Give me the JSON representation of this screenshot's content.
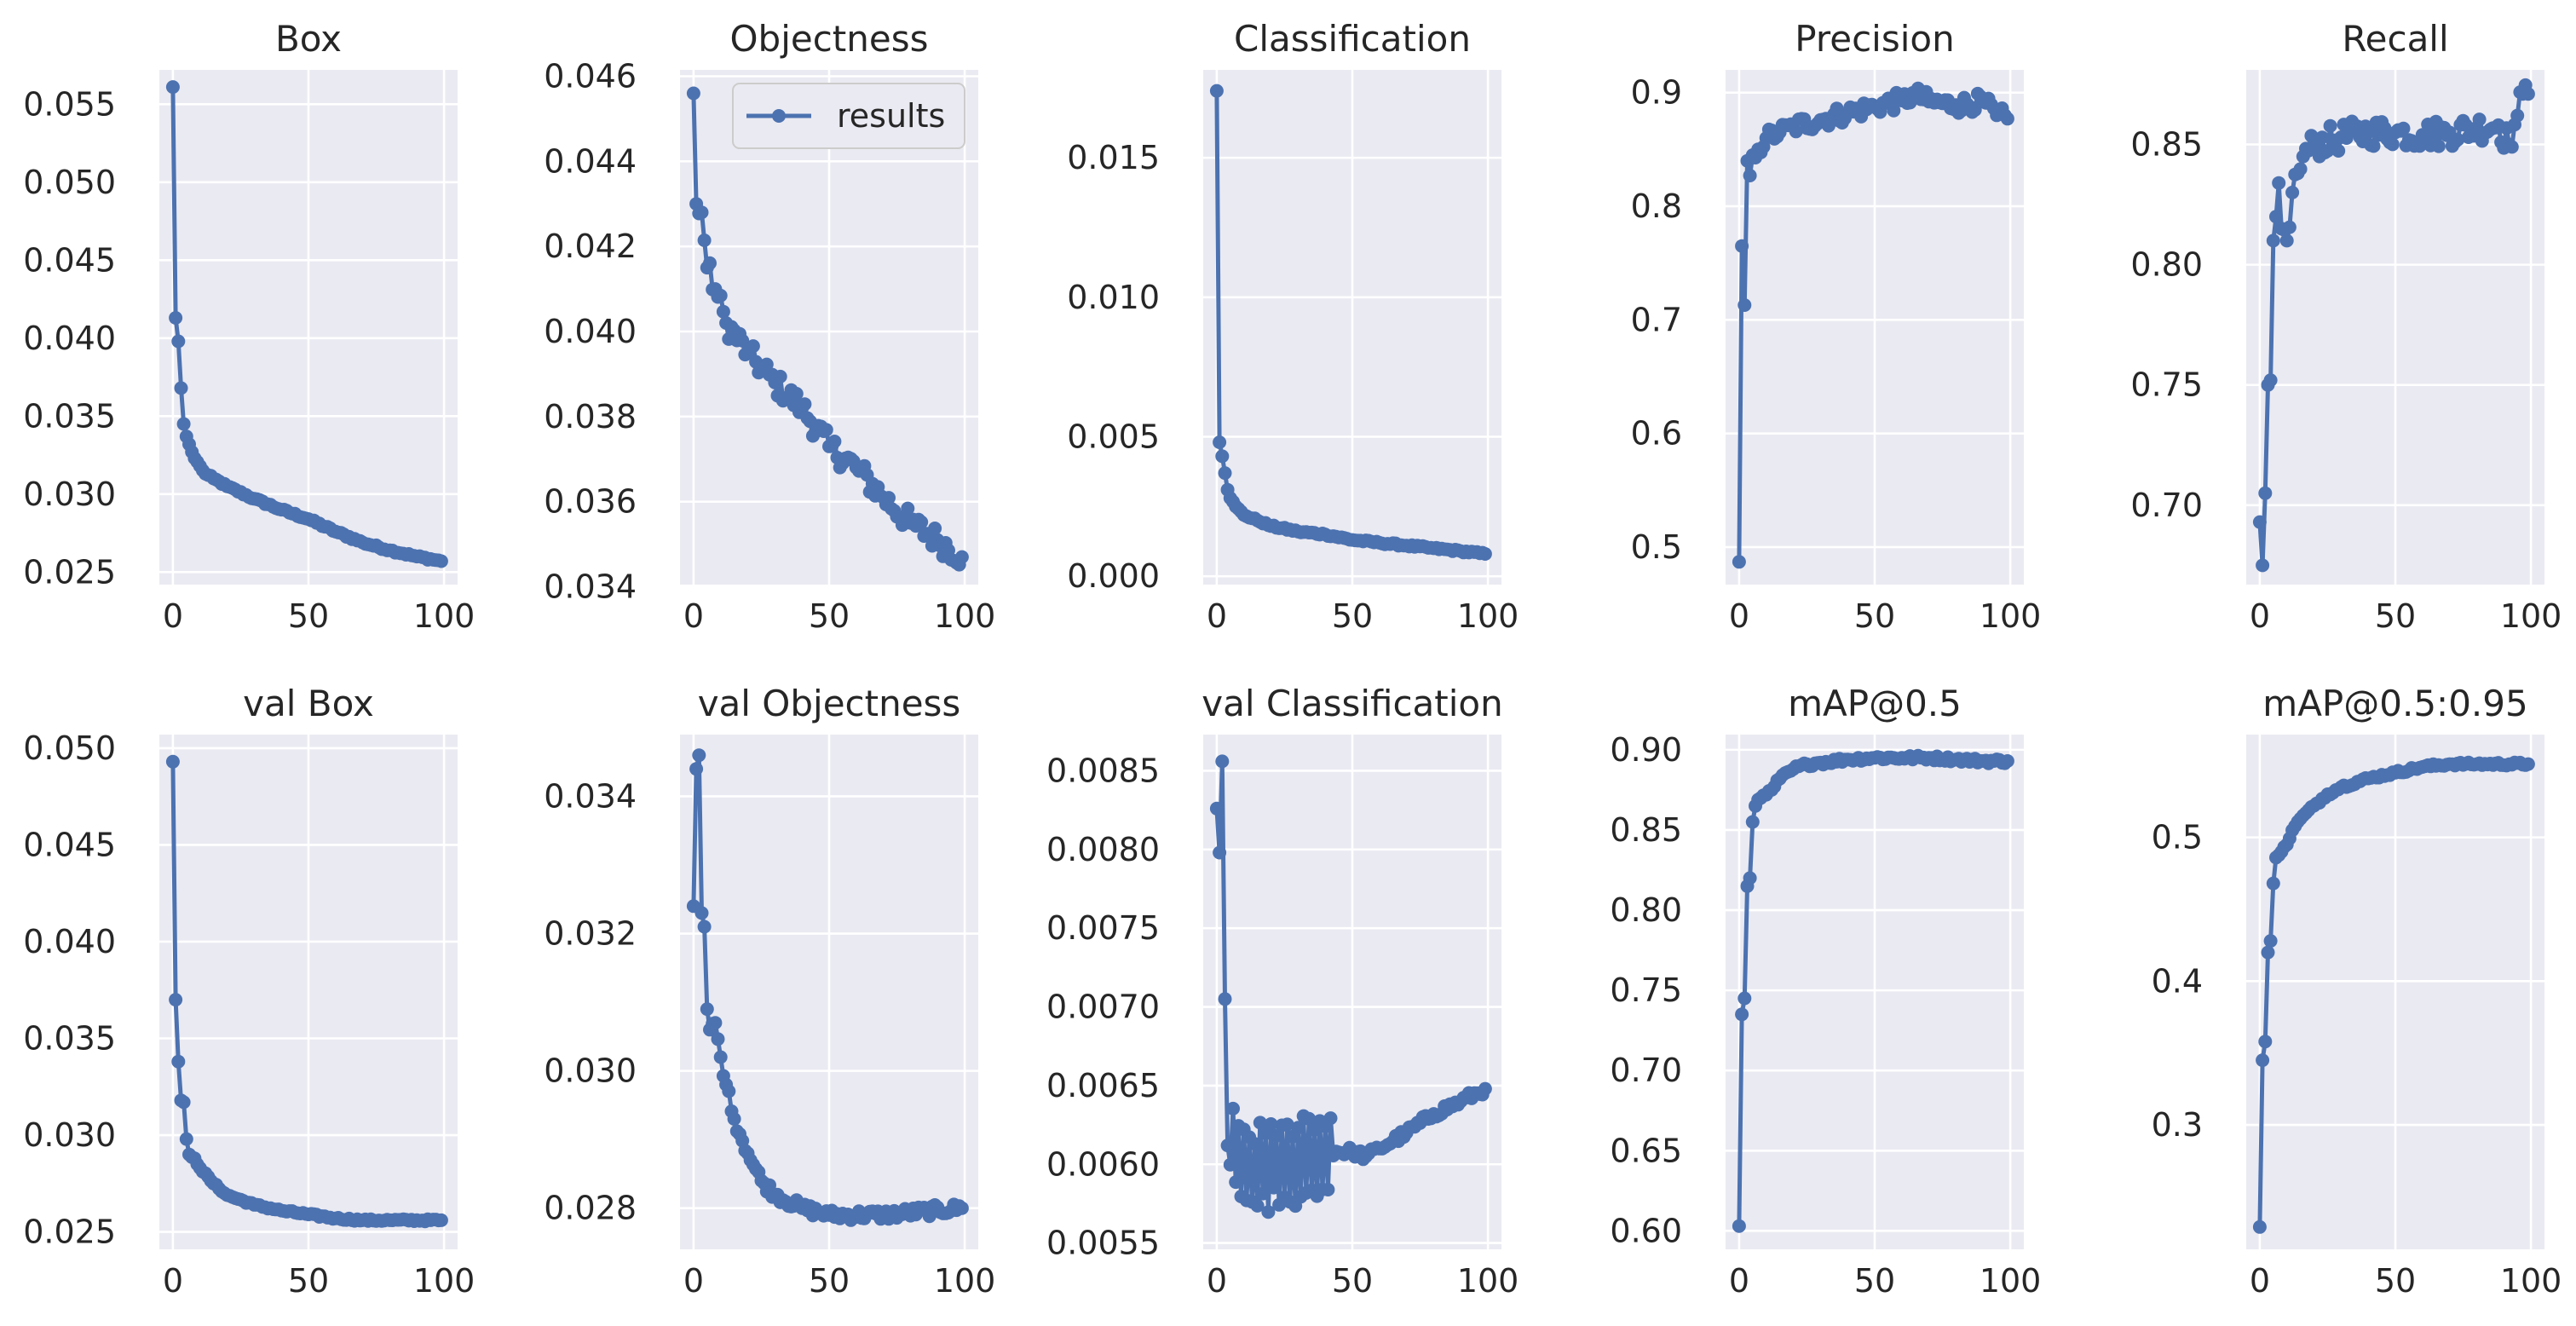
{
  "chart_data": [
    {
      "id": "box",
      "type": "line",
      "title": "Box",
      "series_name": "results",
      "xlim": [
        -5,
        105
      ],
      "ylim": [
        0.0242,
        0.0572
      ],
      "xticks": [
        0,
        50,
        100
      ],
      "xtick_labels": [
        "0",
        "50",
        "100"
      ],
      "yticks": [
        0.025,
        0.03,
        0.035,
        0.04,
        0.045,
        0.05,
        0.055
      ],
      "ytick_labels": [
        "0.025",
        "0.030",
        "0.035",
        "0.040",
        "0.045",
        "0.050",
        "0.055"
      ],
      "key_points": [
        [
          0,
          0.0561
        ],
        [
          1,
          0.0413
        ],
        [
          2,
          0.0398
        ],
        [
          3,
          0.0368
        ],
        [
          4,
          0.0345
        ],
        [
          5,
          0.0337
        ],
        [
          6,
          0.0332
        ],
        [
          7,
          0.0327
        ],
        [
          8,
          0.0323
        ],
        [
          10,
          0.0318
        ],
        [
          12,
          0.0313
        ],
        [
          15,
          0.031
        ],
        [
          20,
          0.0305
        ],
        [
          30,
          0.0297
        ],
        [
          40,
          0.029
        ],
        [
          50,
          0.0284
        ],
        [
          60,
          0.0276
        ],
        [
          70,
          0.0269
        ],
        [
          80,
          0.0264
        ],
        [
          90,
          0.026
        ],
        [
          99,
          0.0257
        ]
      ],
      "noise": 8e-05
    },
    {
      "id": "objectness",
      "type": "line",
      "title": "Objectness",
      "series_name": "results",
      "show_legend": true,
      "xlim": [
        -5,
        105
      ],
      "ylim": [
        0.03405,
        0.04615
      ],
      "xticks": [
        0,
        50,
        100
      ],
      "xtick_labels": [
        "0",
        "50",
        "100"
      ],
      "yticks": [
        0.034,
        0.036,
        0.038,
        0.04,
        0.042,
        0.044,
        0.046
      ],
      "ytick_labels": [
        "0.034",
        "0.036",
        "0.038",
        "0.040",
        "0.042",
        "0.044",
        "0.046"
      ],
      "key_points": [
        [
          0,
          0.0456
        ],
        [
          1,
          0.043
        ],
        [
          3,
          0.0428
        ],
        [
          5,
          0.0415
        ],
        [
          8,
          0.041
        ],
        [
          12,
          0.0402
        ],
        [
          20,
          0.0395
        ],
        [
          30,
          0.0388
        ],
        [
          40,
          0.0382
        ],
        [
          50,
          0.0373
        ],
        [
          60,
          0.0368
        ],
        [
          70,
          0.0361
        ],
        [
          80,
          0.0355
        ],
        [
          90,
          0.0351
        ],
        [
          99,
          0.0347
        ]
      ],
      "noise": 0.0003
    },
    {
      "id": "classification",
      "type": "line",
      "title": "Classification",
      "series_name": "results",
      "xlim": [
        -5,
        105
      ],
      "ylim": [
        -0.0003,
        0.01815
      ],
      "xticks": [
        0,
        50,
        100
      ],
      "xtick_labels": [
        "0",
        "50",
        "100"
      ],
      "yticks": [
        0.0,
        0.005,
        0.01,
        0.015
      ],
      "ytick_labels": [
        "0.000",
        "0.005",
        "0.010",
        "0.015"
      ],
      "key_points": [
        [
          0,
          0.0174
        ],
        [
          1,
          0.0048
        ],
        [
          2,
          0.0043
        ],
        [
          3,
          0.0037
        ],
        [
          4,
          0.0031
        ],
        [
          5,
          0.0028
        ],
        [
          7,
          0.0025
        ],
        [
          10,
          0.0022
        ],
        [
          15,
          0.002
        ],
        [
          20,
          0.0018
        ],
        [
          30,
          0.0016
        ],
        [
          40,
          0.0015
        ],
        [
          50,
          0.0013
        ],
        [
          60,
          0.0012
        ],
        [
          70,
          0.0011
        ],
        [
          80,
          0.001
        ],
        [
          90,
          0.0009
        ],
        [
          99,
          0.0008
        ]
      ],
      "noise": 4e-05
    },
    {
      "id": "precision",
      "type": "line",
      "title": "Precision",
      "series_name": "results",
      "xlim": [
        -5,
        105
      ],
      "ylim": [
        0.467,
        0.92
      ],
      "xticks": [
        0,
        50,
        100
      ],
      "xtick_labels": [
        "0",
        "50",
        "100"
      ],
      "yticks": [
        0.5,
        0.6,
        0.7,
        0.8,
        0.9
      ],
      "ytick_labels": [
        "0.5",
        "0.6",
        "0.7",
        "0.8",
        "0.9"
      ],
      "key_points": [
        [
          0,
          0.487
        ],
        [
          1,
          0.765
        ],
        [
          2,
          0.713
        ],
        [
          3,
          0.84
        ],
        [
          4,
          0.827
        ],
        [
          5,
          0.845
        ],
        [
          7,
          0.85
        ],
        [
          10,
          0.86
        ],
        [
          15,
          0.865
        ],
        [
          20,
          0.87
        ],
        [
          30,
          0.876
        ],
        [
          40,
          0.882
        ],
        [
          50,
          0.888
        ],
        [
          60,
          0.893
        ],
        [
          65,
          0.898
        ],
        [
          70,
          0.892
        ],
        [
          80,
          0.889
        ],
        [
          90,
          0.892
        ],
        [
          95,
          0.88
        ],
        [
          99,
          0.877
        ]
      ],
      "noise": 0.008
    },
    {
      "id": "recall",
      "type": "line",
      "title": "Recall",
      "series_name": "results",
      "xlim": [
        -5,
        105
      ],
      "ylim": [
        0.667,
        0.881
      ],
      "xticks": [
        0,
        50,
        100
      ],
      "xtick_labels": [
        "0",
        "50",
        "100"
      ],
      "yticks": [
        0.7,
        0.75,
        0.8,
        0.85
      ],
      "ytick_labels": [
        "0.70",
        "0.75",
        "0.80",
        "0.85"
      ],
      "key_points": [
        [
          0,
          0.693
        ],
        [
          1,
          0.675
        ],
        [
          2,
          0.705
        ],
        [
          3,
          0.75
        ],
        [
          4,
          0.752
        ],
        [
          5,
          0.81
        ],
        [
          6,
          0.82
        ],
        [
          7,
          0.834
        ],
        [
          8,
          0.815
        ],
        [
          10,
          0.81
        ],
        [
          12,
          0.83
        ],
        [
          14,
          0.838
        ],
        [
          16,
          0.845
        ],
        [
          20,
          0.85
        ],
        [
          30,
          0.853
        ],
        [
          40,
          0.855
        ],
        [
          50,
          0.855
        ],
        [
          60,
          0.854
        ],
        [
          70,
          0.855
        ],
        [
          80,
          0.857
        ],
        [
          88,
          0.858
        ],
        [
          92,
          0.85
        ],
        [
          95,
          0.862
        ],
        [
          97,
          0.871
        ],
        [
          99,
          0.871
        ]
      ],
      "noise": 0.006
    },
    {
      "id": "val-box",
      "type": "line",
      "title": "val Box",
      "series_name": "results",
      "xlim": [
        -5,
        105
      ],
      "ylim": [
        0.0241,
        0.0507
      ],
      "xticks": [
        0,
        50,
        100
      ],
      "xtick_labels": [
        "0",
        "50",
        "100"
      ],
      "yticks": [
        0.025,
        0.03,
        0.035,
        0.04,
        0.045,
        0.05
      ],
      "ytick_labels": [
        "0.025",
        "0.030",
        "0.035",
        "0.040",
        "0.045",
        "0.050"
      ],
      "key_points": [
        [
          0,
          0.0493
        ],
        [
          1,
          0.037
        ],
        [
          2,
          0.0338
        ],
        [
          3,
          0.0318
        ],
        [
          4,
          0.0317
        ],
        [
          5,
          0.0298
        ],
        [
          6,
          0.029
        ],
        [
          8,
          0.0288
        ],
        [
          10,
          0.0283
        ],
        [
          15,
          0.0275
        ],
        [
          20,
          0.0269
        ],
        [
          30,
          0.0264
        ],
        [
          40,
          0.0261
        ],
        [
          50,
          0.0259
        ],
        [
          60,
          0.0257
        ],
        [
          70,
          0.0256
        ],
        [
          80,
          0.0256
        ],
        [
          99,
          0.0256
        ]
      ],
      "noise": 6e-05
    },
    {
      "id": "val-objectness",
      "type": "line",
      "title": "val Objectness",
      "series_name": "results",
      "xlim": [
        -5,
        105
      ],
      "ylim": [
        0.0274,
        0.0349
      ],
      "xticks": [
        0,
        50,
        100
      ],
      "xtick_labels": [
        "0",
        "50",
        "100"
      ],
      "yticks": [
        0.028,
        0.03,
        0.032,
        0.034
      ],
      "ytick_labels": [
        "0.028",
        "0.030",
        "0.032",
        "0.034"
      ],
      "key_points": [
        [
          0,
          0.0324
        ],
        [
          1,
          0.0344
        ],
        [
          2,
          0.0346
        ],
        [
          3,
          0.0323
        ],
        [
          4,
          0.0321
        ],
        [
          5,
          0.0309
        ],
        [
          6,
          0.0306
        ],
        [
          8,
          0.0307
        ],
        [
          10,
          0.0302
        ],
        [
          12,
          0.0298
        ],
        [
          15,
          0.0293
        ],
        [
          20,
          0.0288
        ],
        [
          25,
          0.0284
        ],
        [
          30,
          0.0282
        ],
        [
          40,
          0.028
        ],
        [
          50,
          0.0279
        ],
        [
          70,
          0.0279
        ],
        [
          99,
          0.028
        ]
      ],
      "noise": 8e-05
    },
    {
      "id": "val-classification",
      "type": "line",
      "title": "val Classification",
      "series_name": "results",
      "xlim": [
        -5,
        105
      ],
      "ylim": [
        0.00546,
        0.00873
      ],
      "xticks": [
        0,
        50,
        100
      ],
      "xtick_labels": [
        "0",
        "50",
        "100"
      ],
      "yticks": [
        0.0055,
        0.006,
        0.0065,
        0.007,
        0.0075,
        0.008,
        0.0085
      ],
      "ytick_labels": [
        "0.0055",
        "0.0060",
        "0.0065",
        "0.0070",
        "0.0075",
        "0.0080",
        "0.0085"
      ],
      "key_points": [
        [
          0,
          0.00826
        ],
        [
          1,
          0.00798
        ],
        [
          2,
          0.00856
        ],
        [
          3,
          0.00705
        ],
        [
          4,
          0.00612
        ],
        [
          5,
          0.00618
        ],
        [
          10,
          0.00595
        ],
        [
          20,
          0.00598
        ],
        [
          30,
          0.006
        ],
        [
          40,
          0.00608
        ],
        [
          50,
          0.00608
        ],
        [
          55,
          0.00605
        ],
        [
          60,
          0.0061
        ],
        [
          70,
          0.0062
        ],
        [
          80,
          0.00632
        ],
        [
          90,
          0.0064
        ],
        [
          99,
          0.00648
        ]
      ],
      "noise": 3e-05,
      "oscillation": {
        "from": 5,
        "to": 42,
        "amplitude": 0.00028
      }
    },
    {
      "id": "map05",
      "type": "line",
      "title": "mAP@0.5",
      "series_name": "results",
      "xlim": [
        -5,
        105
      ],
      "ylim": [
        0.5885,
        0.9095
      ],
      "xticks": [
        0,
        50,
        100
      ],
      "xtick_labels": [
        "0",
        "50",
        "100"
      ],
      "yticks": [
        0.6,
        0.65,
        0.7,
        0.75,
        0.8,
        0.85,
        0.9
      ],
      "ytick_labels": [
        "0.60",
        "0.65",
        "0.70",
        "0.75",
        "0.80",
        "0.85",
        "0.90"
      ],
      "key_points": [
        [
          0,
          0.603
        ],
        [
          1,
          0.735
        ],
        [
          2,
          0.745
        ],
        [
          3,
          0.815
        ],
        [
          4,
          0.82
        ],
        [
          5,
          0.855
        ],
        [
          6,
          0.865
        ],
        [
          8,
          0.87
        ],
        [
          10,
          0.872
        ],
        [
          12,
          0.875
        ],
        [
          15,
          0.882
        ],
        [
          20,
          0.888
        ],
        [
          25,
          0.891
        ],
        [
          30,
          0.892
        ],
        [
          40,
          0.894
        ],
        [
          50,
          0.895
        ],
        [
          60,
          0.895
        ],
        [
          70,
          0.895
        ],
        [
          80,
          0.894
        ],
        [
          90,
          0.893
        ],
        [
          99,
          0.893
        ]
      ],
      "noise": 0.0015
    },
    {
      "id": "map0595",
      "type": "line",
      "title": "mAP@0.5:0.95",
      "series_name": "results",
      "xlim": [
        -5,
        105
      ],
      "ylim": [
        0.2135,
        0.5715
      ],
      "xticks": [
        0,
        50,
        100
      ],
      "xtick_labels": [
        "0",
        "50",
        "100"
      ],
      "yticks": [
        0.3,
        0.4,
        0.5
      ],
      "ytick_labels": [
        "0.3",
        "0.4",
        "0.5"
      ],
      "key_points": [
        [
          0,
          0.229
        ],
        [
          1,
          0.345
        ],
        [
          2,
          0.358
        ],
        [
          3,
          0.42
        ],
        [
          4,
          0.428
        ],
        [
          5,
          0.468
        ],
        [
          6,
          0.486
        ],
        [
          8,
          0.49
        ],
        [
          10,
          0.495
        ],
        [
          12,
          0.505
        ],
        [
          15,
          0.513
        ],
        [
          20,
          0.522
        ],
        [
          25,
          0.53
        ],
        [
          30,
          0.535
        ],
        [
          40,
          0.541
        ],
        [
          50,
          0.545
        ],
        [
          60,
          0.549
        ],
        [
          70,
          0.551
        ],
        [
          80,
          0.551
        ],
        [
          99,
          0.551
        ]
      ],
      "noise": 0.0012
    }
  ],
  "style": {
    "series_color": "#4c72b0",
    "axes_bg": "#eaeaf2",
    "grid_color": "#ffffff",
    "text_color": "#262626"
  },
  "legend": {
    "label": "results"
  }
}
